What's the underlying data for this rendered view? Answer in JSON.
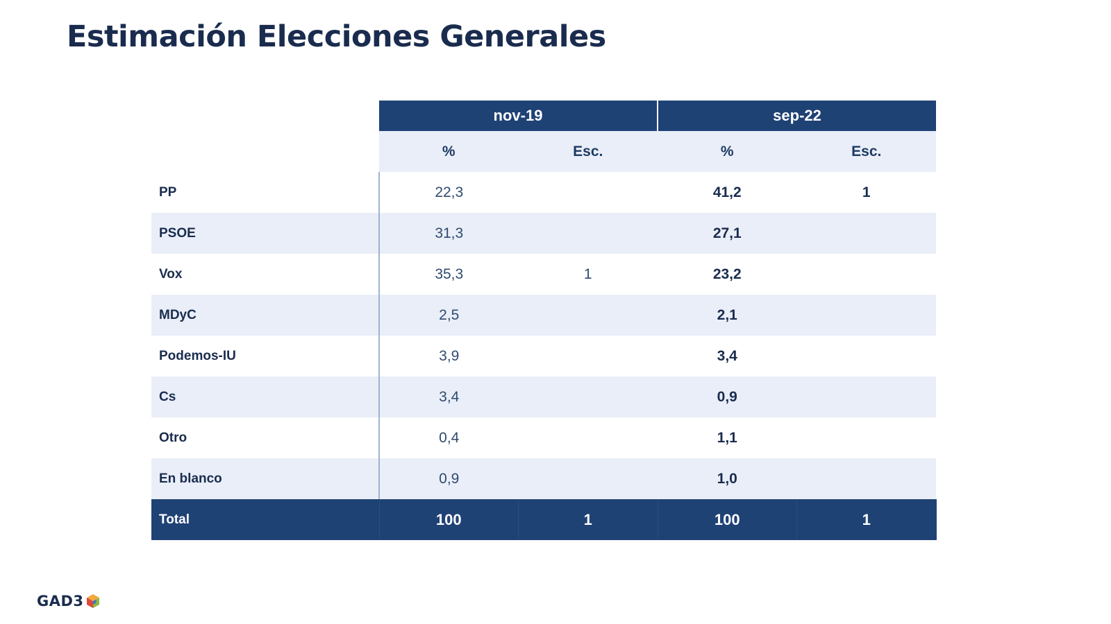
{
  "title": "Estimación Elecciones Generales",
  "table": {
    "periods": [
      "nov-19",
      "sep-22"
    ],
    "subheaders": [
      "%",
      "Esc.",
      "%",
      "Esc."
    ],
    "rows": [
      {
        "party": "PP",
        "nov19_pct": "22,3",
        "nov19_esc": "",
        "sep22_pct": "41,2",
        "sep22_esc": "1"
      },
      {
        "party": "PSOE",
        "nov19_pct": "31,3",
        "nov19_esc": "",
        "sep22_pct": "27,1",
        "sep22_esc": ""
      },
      {
        "party": "Vox",
        "nov19_pct": "35,3",
        "nov19_esc": "1",
        "sep22_pct": "23,2",
        "sep22_esc": ""
      },
      {
        "party": "MDyC",
        "nov19_pct": "2,5",
        "nov19_esc": "",
        "sep22_pct": "2,1",
        "sep22_esc": ""
      },
      {
        "party": "Podemos-IU",
        "nov19_pct": "3,9",
        "nov19_esc": "",
        "sep22_pct": "3,4",
        "sep22_esc": ""
      },
      {
        "party": "Cs",
        "nov19_pct": "3,4",
        "nov19_esc": "",
        "sep22_pct": "0,9",
        "sep22_esc": ""
      },
      {
        "party": "Otro",
        "nov19_pct": "0,4",
        "nov19_esc": "",
        "sep22_pct": "1,1",
        "sep22_esc": ""
      },
      {
        "party": "En blanco",
        "nov19_pct": "0,9",
        "nov19_esc": "",
        "sep22_pct": "1,0",
        "sep22_esc": ""
      }
    ],
    "total": {
      "label": "Total",
      "nov19_pct": "100",
      "nov19_esc": "1",
      "sep22_pct": "100",
      "sep22_esc": "1"
    }
  },
  "logo": {
    "text": "GAD3",
    "colors": [
      "#e0483c",
      "#8fb83f",
      "#f2a93b",
      "#3a7cc2"
    ]
  },
  "colors": {
    "header_bg": "#1f4275",
    "shaded_row": "#e9eef8",
    "title": "#1a2c4e"
  }
}
